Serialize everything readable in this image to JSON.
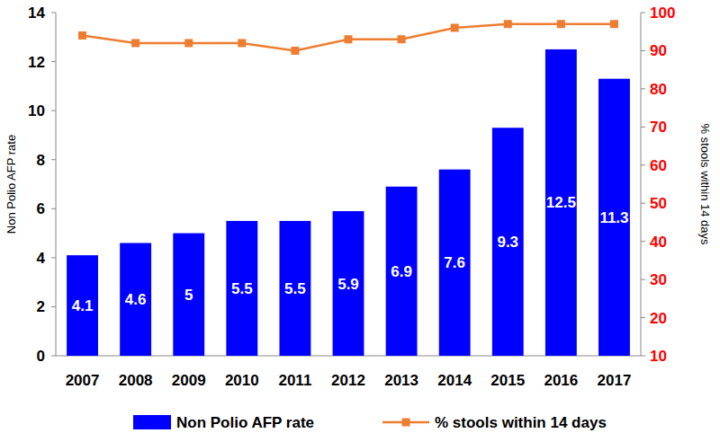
{
  "chart_data": {
    "type": "bar",
    "y_label": "Non Polio AFP rate",
    "y2_label": "% stools within 14 days",
    "categories": [
      "2007",
      "2008",
      "2009",
      "2010",
      "2011",
      "2012",
      "2013",
      "2014",
      "2015",
      "2016",
      "2017"
    ],
    "ylim": [
      0,
      14
    ],
    "yticks": [
      0,
      2,
      4,
      6,
      8,
      10,
      12,
      14
    ],
    "y2lim": [
      10,
      100
    ],
    "y2ticks": [
      10,
      20,
      30,
      40,
      50,
      60,
      70,
      80,
      90,
      100
    ],
    "grid": false,
    "legend": "bottom",
    "series": [
      {
        "name": "Non Polio AFP rate",
        "type": "bar",
        "color": "#0000ff",
        "data_labels": true,
        "values": [
          4.1,
          4.6,
          5,
          5.5,
          5.5,
          5.9,
          6.9,
          7.6,
          9.3,
          12.5,
          11.3
        ]
      },
      {
        "name": "% stools within 14 days",
        "type": "line",
        "axis": "y2",
        "color": "#ed7d31",
        "marker": "square",
        "line_style": "solid",
        "values": [
          94,
          92,
          92,
          92,
          90,
          93,
          93,
          96,
          97,
          97,
          97
        ]
      }
    ]
  }
}
